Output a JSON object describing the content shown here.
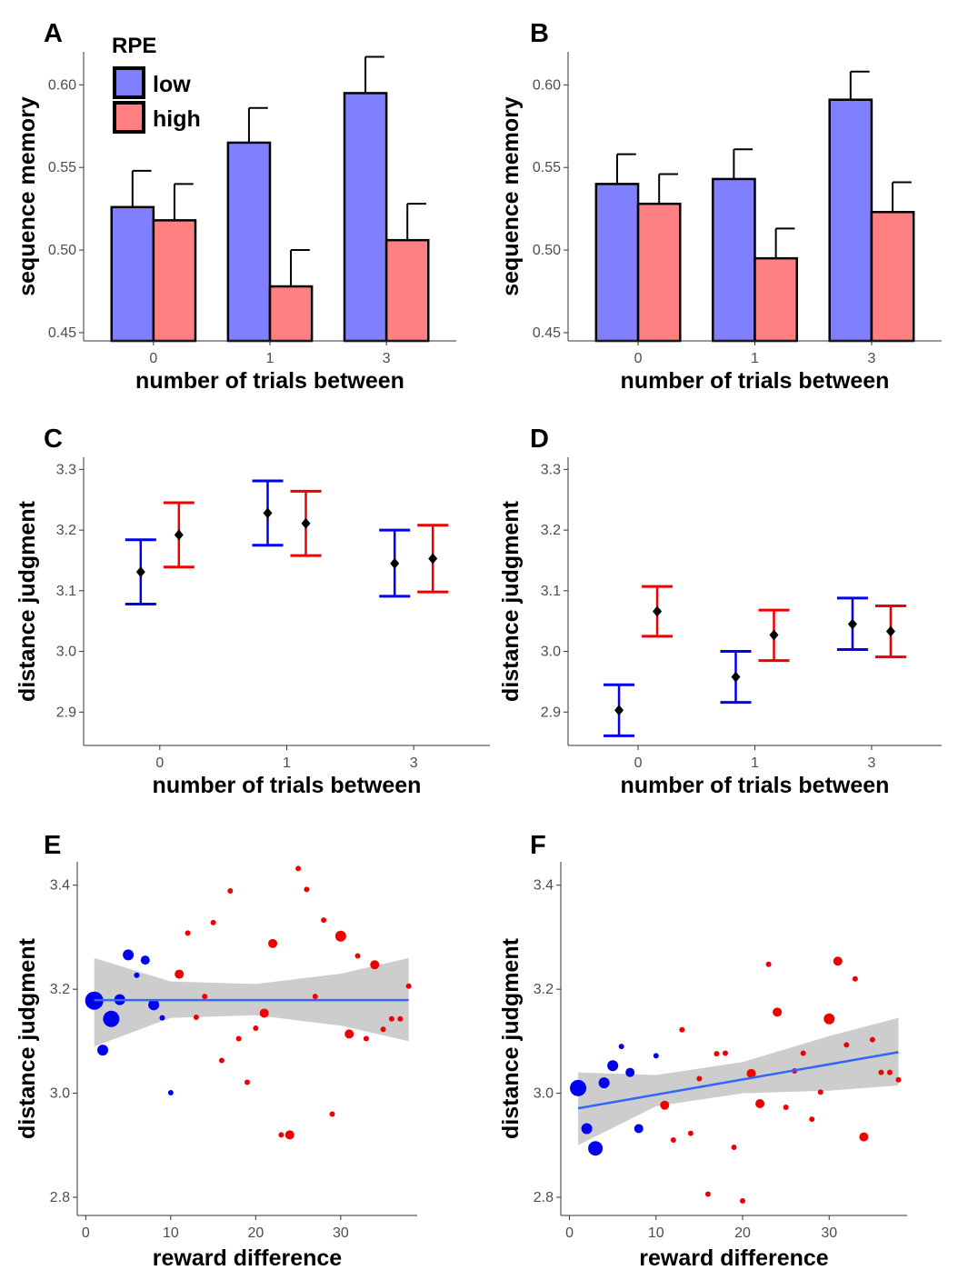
{
  "colors": {
    "low_bar": "#8080ff",
    "high_bar": "#ff8080",
    "low_err": "#0000ee",
    "high_err": "#ee0000",
    "point_low": "#0000ee",
    "point_high": "#ee0000",
    "fit_line": "#3366ff",
    "ribbon": "#c8c8c8"
  },
  "legend": {
    "title": "RPE",
    "items": [
      "low",
      "high"
    ],
    "position": "top-left"
  },
  "chart_data": [
    {
      "panel": "A",
      "type": "bar",
      "categories": [
        "0",
        "1",
        "3"
      ],
      "series": [
        {
          "name": "low",
          "values": [
            0.526,
            0.565,
            0.595
          ],
          "errors": [
            0.022,
            0.021,
            0.022
          ]
        },
        {
          "name": "high",
          "values": [
            0.518,
            0.478,
            0.506
          ],
          "errors": [
            0.022,
            0.022,
            0.022
          ]
        }
      ],
      "xlabel": "number of trials between",
      "ylabel": "sequence memory",
      "ylim": [
        0.445,
        0.62
      ],
      "yticks": [
        "0.45",
        "0.50",
        "0.55",
        "0.60"
      ]
    },
    {
      "panel": "B",
      "type": "bar",
      "categories": [
        "0",
        "1",
        "3"
      ],
      "series": [
        {
          "name": "low",
          "values": [
            0.54,
            0.543,
            0.591
          ],
          "errors": [
            0.018,
            0.018,
            0.017
          ]
        },
        {
          "name": "high",
          "values": [
            0.528,
            0.495,
            0.523
          ],
          "errors": [
            0.018,
            0.018,
            0.018
          ]
        }
      ],
      "xlabel": "number of trials between",
      "ylabel": "sequence memory",
      "ylim": [
        0.445,
        0.62
      ],
      "yticks": [
        "0.45",
        "0.50",
        "0.55",
        "0.60"
      ]
    },
    {
      "panel": "C",
      "type": "scatter",
      "categories": [
        "0",
        "1",
        "3"
      ],
      "series": [
        {
          "name": "low",
          "values": [
            3.131,
            3.228,
            3.145
          ],
          "lower": [
            3.078,
            3.175,
            3.091
          ],
          "upper": [
            3.184,
            3.281,
            3.2
          ]
        },
        {
          "name": "high",
          "values": [
            3.192,
            3.211,
            3.153
          ],
          "lower": [
            3.139,
            3.158,
            3.098
          ],
          "upper": [
            3.245,
            3.264,
            3.208
          ]
        }
      ],
      "xlabel": "number of trials between",
      "ylabel": "distance judgment",
      "ylim": [
        2.845,
        3.32
      ],
      "yticks": [
        "2.9",
        "3.0",
        "3.1",
        "3.2",
        "3.3"
      ]
    },
    {
      "panel": "D",
      "type": "scatter",
      "categories": [
        "0",
        "1",
        "3"
      ],
      "series": [
        {
          "name": "low",
          "values": [
            2.903,
            2.958,
            3.045
          ],
          "lower": [
            2.861,
            2.916,
            3.003
          ],
          "upper": [
            2.945,
            3.0,
            3.088
          ]
        },
        {
          "name": "high",
          "values": [
            3.066,
            3.027,
            3.033
          ],
          "lower": [
            3.025,
            2.985,
            2.991
          ],
          "upper": [
            3.107,
            3.068,
            3.075
          ]
        }
      ],
      "xlabel": "number of trials between",
      "ylabel": "distance judgment",
      "ylim": [
        2.845,
        3.32
      ],
      "yticks": [
        "2.9",
        "3.0",
        "3.1",
        "3.2",
        "3.3"
      ]
    },
    {
      "panel": "E",
      "type": "scatter",
      "xlabel": "reward difference",
      "ylabel": "distance judgment",
      "xlim": [
        -1,
        39
      ],
      "ylim": [
        2.765,
        3.445
      ],
      "xticks": [
        "0",
        "10",
        "20",
        "30"
      ],
      "yticks": [
        "2.8",
        "3.0",
        "3.2",
        "3.4"
      ],
      "points": [
        {
          "x": 1,
          "y": 3.178,
          "group": "low",
          "size": 10
        },
        {
          "x": 2,
          "y": 3.083,
          "group": "low",
          "size": 6
        },
        {
          "x": 3,
          "y": 3.143,
          "group": "low",
          "size": 9
        },
        {
          "x": 4,
          "y": 3.18,
          "group": "low",
          "size": 6
        },
        {
          "x": 5,
          "y": 3.266,
          "group": "low",
          "size": 6
        },
        {
          "x": 6,
          "y": 3.227,
          "group": "low",
          "size": 3
        },
        {
          "x": 7,
          "y": 3.256,
          "group": "low",
          "size": 5
        },
        {
          "x": 8,
          "y": 3.17,
          "group": "low",
          "size": 6
        },
        {
          "x": 9,
          "y": 3.145,
          "group": "low",
          "size": 3
        },
        {
          "x": 10,
          "y": 3.001,
          "group": "low",
          "size": 3
        },
        {
          "x": 11,
          "y": 3.229,
          "group": "high",
          "size": 5
        },
        {
          "x": 12,
          "y": 3.308,
          "group": "high",
          "size": 3
        },
        {
          "x": 13,
          "y": 3.146,
          "group": "high",
          "size": 3
        },
        {
          "x": 14,
          "y": 3.186,
          "group": "high",
          "size": 3
        },
        {
          "x": 15,
          "y": 3.328,
          "group": "high",
          "size": 3
        },
        {
          "x": 16,
          "y": 3.063,
          "group": "high",
          "size": 3
        },
        {
          "x": 17,
          "y": 3.389,
          "group": "high",
          "size": 3
        },
        {
          "x": 18,
          "y": 3.105,
          "group": "high",
          "size": 3
        },
        {
          "x": 19,
          "y": 3.021,
          "group": "high",
          "size": 3
        },
        {
          "x": 20,
          "y": 3.125,
          "group": "high",
          "size": 3
        },
        {
          "x": 21,
          "y": 3.154,
          "group": "high",
          "size": 5
        },
        {
          "x": 22,
          "y": 3.288,
          "group": "high",
          "size": 5
        },
        {
          "x": 23,
          "y": 2.92,
          "group": "high",
          "size": 3
        },
        {
          "x": 24,
          "y": 2.92,
          "group": "high",
          "size": 5
        },
        {
          "x": 25,
          "y": 3.432,
          "group": "high",
          "size": 3
        },
        {
          "x": 26,
          "y": 3.392,
          "group": "high",
          "size": 3
        },
        {
          "x": 27,
          "y": 3.186,
          "group": "high",
          "size": 3
        },
        {
          "x": 28,
          "y": 3.333,
          "group": "high",
          "size": 3
        },
        {
          "x": 29,
          "y": 2.96,
          "group": "high",
          "size": 3
        },
        {
          "x": 30,
          "y": 3.302,
          "group": "high",
          "size": 6
        },
        {
          "x": 31,
          "y": 3.114,
          "group": "high",
          "size": 5
        },
        {
          "x": 32,
          "y": 3.264,
          "group": "high",
          "size": 3
        },
        {
          "x": 33,
          "y": 3.105,
          "group": "high",
          "size": 3
        },
        {
          "x": 34,
          "y": 3.247,
          "group": "high",
          "size": 5
        },
        {
          "x": 35,
          "y": 3.123,
          "group": "high",
          "size": 3
        },
        {
          "x": 36,
          "y": 3.143,
          "group": "high",
          "size": 3
        },
        {
          "x": 37,
          "y": 3.143,
          "group": "high",
          "size": 3
        },
        {
          "x": 38,
          "y": 3.206,
          "group": "high",
          "size": 3
        }
      ],
      "fit": {
        "x": [
          1,
          38
        ],
        "y": [
          3.179,
          3.179
        ]
      },
      "ribbon": {
        "x": [
          1,
          10,
          20,
          30,
          38
        ],
        "lower": [
          3.09,
          3.145,
          3.15,
          3.13,
          3.1
        ],
        "upper": [
          3.26,
          3.215,
          3.21,
          3.23,
          3.26
        ]
      }
    },
    {
      "panel": "F",
      "type": "scatter",
      "xlabel": "reward difference",
      "ylabel": "distance judgment",
      "xlim": [
        -1,
        39
      ],
      "ylim": [
        2.765,
        3.445
      ],
      "xticks": [
        "0",
        "10",
        "20",
        "30"
      ],
      "yticks": [
        "2.8",
        "3.0",
        "3.2",
        "3.4"
      ],
      "points": [
        {
          "x": 1,
          "y": 3.01,
          "group": "low",
          "size": 9
        },
        {
          "x": 2,
          "y": 2.932,
          "group": "low",
          "size": 6
        },
        {
          "x": 3,
          "y": 2.894,
          "group": "low",
          "size": 8
        },
        {
          "x": 4,
          "y": 3.02,
          "group": "low",
          "size": 6
        },
        {
          "x": 5,
          "y": 3.053,
          "group": "low",
          "size": 6
        },
        {
          "x": 6,
          "y": 3.09,
          "group": "low",
          "size": 3
        },
        {
          "x": 7,
          "y": 3.04,
          "group": "low",
          "size": 5
        },
        {
          "x": 8,
          "y": 2.932,
          "group": "low",
          "size": 5
        },
        {
          "x": 10,
          "y": 3.072,
          "group": "low",
          "size": 3
        },
        {
          "x": 11,
          "y": 2.977,
          "group": "high",
          "size": 5
        },
        {
          "x": 12,
          "y": 2.91,
          "group": "high",
          "size": 3
        },
        {
          "x": 13,
          "y": 3.122,
          "group": "high",
          "size": 3
        },
        {
          "x": 14,
          "y": 2.923,
          "group": "high",
          "size": 3
        },
        {
          "x": 15,
          "y": 3.028,
          "group": "high",
          "size": 3
        },
        {
          "x": 16,
          "y": 2.806,
          "group": "high",
          "size": 3
        },
        {
          "x": 17,
          "y": 3.076,
          "group": "high",
          "size": 3
        },
        {
          "x": 18,
          "y": 3.077,
          "group": "high",
          "size": 3
        },
        {
          "x": 19,
          "y": 2.896,
          "group": "high",
          "size": 3
        },
        {
          "x": 20,
          "y": 2.793,
          "group": "high",
          "size": 3
        },
        {
          "x": 21,
          "y": 3.038,
          "group": "high",
          "size": 5
        },
        {
          "x": 22,
          "y": 2.98,
          "group": "high",
          "size": 5
        },
        {
          "x": 23,
          "y": 3.248,
          "group": "high",
          "size": 3
        },
        {
          "x": 24,
          "y": 3.156,
          "group": "high",
          "size": 5
        },
        {
          "x": 25,
          "y": 2.973,
          "group": "high",
          "size": 3
        },
        {
          "x": 26,
          "y": 3.043,
          "group": "high",
          "size": 3
        },
        {
          "x": 27,
          "y": 3.077,
          "group": "high",
          "size": 3
        },
        {
          "x": 28,
          "y": 2.95,
          "group": "high",
          "size": 3
        },
        {
          "x": 29,
          "y": 3.002,
          "group": "high",
          "size": 3
        },
        {
          "x": 30,
          "y": 3.143,
          "group": "high",
          "size": 6
        },
        {
          "x": 31,
          "y": 3.254,
          "group": "high",
          "size": 5
        },
        {
          "x": 32,
          "y": 3.093,
          "group": "high",
          "size": 3
        },
        {
          "x": 33,
          "y": 3.22,
          "group": "high",
          "size": 3
        },
        {
          "x": 34,
          "y": 2.916,
          "group": "high",
          "size": 5
        },
        {
          "x": 35,
          "y": 3.103,
          "group": "high",
          "size": 3
        },
        {
          "x": 36,
          "y": 3.04,
          "group": "high",
          "size": 3
        },
        {
          "x": 37,
          "y": 3.04,
          "group": "high",
          "size": 3
        },
        {
          "x": 38,
          "y": 3.026,
          "group": "high",
          "size": 3
        }
      ],
      "fit": {
        "x": [
          1,
          38
        ],
        "y": [
          2.971,
          3.079
        ]
      },
      "ribbon": {
        "x": [
          1,
          10,
          20,
          30,
          38
        ],
        "lower": [
          2.9,
          2.975,
          3.0,
          3.005,
          3.015
        ],
        "upper": [
          3.04,
          3.035,
          3.06,
          3.11,
          3.145
        ]
      }
    }
  ]
}
